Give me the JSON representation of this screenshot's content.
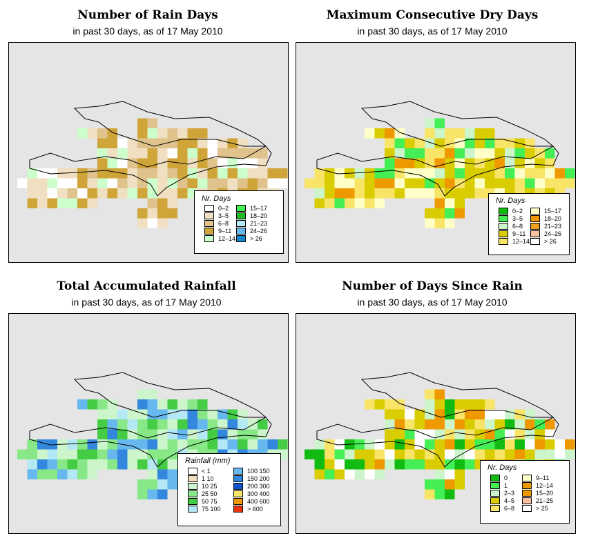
{
  "panels": [
    {
      "title": "Number of Rain Days",
      "subtitle": "in past 30 days, as of  17 May 2010",
      "legend_title": "Nr. Days",
      "legend": [
        {
          "label": "0–2",
          "color": "#ffffff"
        },
        {
          "label": "3–5",
          "color": "#f0dfc0"
        },
        {
          "label": "6–8",
          "color": "#e0c38c"
        },
        {
          "label": "9–11",
          "color": "#cfa53a"
        },
        {
          "label": "12–14",
          "color": "#ccffcc"
        },
        {
          "label": "15–17",
          "color": "#44ee55"
        },
        {
          "label": "18–20",
          "color": "#22bb22"
        },
        {
          "label": "21–23",
          "color": "#b4e8f4"
        },
        {
          "label": "24–26",
          "color": "#66b8ee"
        },
        {
          "label": "> 26",
          "color": "#1188cc"
        }
      ]
    },
    {
      "title": "Maximum Consecutive Dry Days",
      "subtitle": "in past 30 days, as of  17 May 2010",
      "legend_title": "Nr. Days",
      "legend": [
        {
          "label": "0–2",
          "color": "#11bb11"
        },
        {
          "label": "3–5",
          "color": "#44ee55"
        },
        {
          "label": "6–8",
          "color": "#ccf5cc"
        },
        {
          "label": "9–11",
          "color": "#d9cc00"
        },
        {
          "label": "12–14",
          "color": "#f8e466"
        },
        {
          "label": "15–17",
          "color": "#ffffc8"
        },
        {
          "label": "18–20",
          "color": "#ee9900"
        },
        {
          "label": "21–23",
          "color": "#f0a020"
        },
        {
          "label": "24–26",
          "color": "#f8c0a0"
        },
        {
          "label": "> 26",
          "color": "#ffffff"
        }
      ]
    },
    {
      "title": "Total Accumulated Rainfall",
      "subtitle": "in past 30 days, as of  17 May 2010",
      "legend_title": "Rainfall (mm)",
      "legend": [
        {
          "label": "< 1",
          "color": "#ffffff"
        },
        {
          "label": "1    10",
          "color": "#f0dfc0"
        },
        {
          "label": "10    25",
          "color": "#ccf5cc"
        },
        {
          "label": "25    50",
          "color": "#88e888"
        },
        {
          "label": "50    75",
          "color": "#44cc44"
        },
        {
          "label": "75  100",
          "color": "#b4e8f4"
        },
        {
          "label": "100  150",
          "color": "#66b8ee"
        },
        {
          "label": "150  200",
          "color": "#3388dd"
        },
        {
          "label": "200  300",
          "color": "#1155cc"
        },
        {
          "label": "300  400",
          "color": "#f8e466"
        },
        {
          "label": "400  600",
          "color": "#ee9900"
        },
        {
          "label": "> 600",
          "color": "#ee3311"
        }
      ]
    },
    {
      "title": "Number of Days Since Rain",
      "subtitle": "in past 30 days, as of  17 May 2010",
      "legend_title": "Nr. Days",
      "legend": [
        {
          "label": "0",
          "color": "#11bb11"
        },
        {
          "label": "1",
          "color": "#44ee55"
        },
        {
          "label": "2–3",
          "color": "#ccf5cc"
        },
        {
          "label": "4–5",
          "color": "#d9cc00"
        },
        {
          "label": "6–8",
          "color": "#f8e466"
        },
        {
          "label": "9–11",
          "color": "#ffffc8"
        },
        {
          "label": "12–14",
          "color": "#ee9900"
        },
        {
          "label": "15–20",
          "color": "#ee9900"
        },
        {
          "label": "21–25",
          "color": "#f8c0a0"
        },
        {
          "label": "> 25",
          "color": "#ffffff"
        }
      ]
    }
  ]
}
